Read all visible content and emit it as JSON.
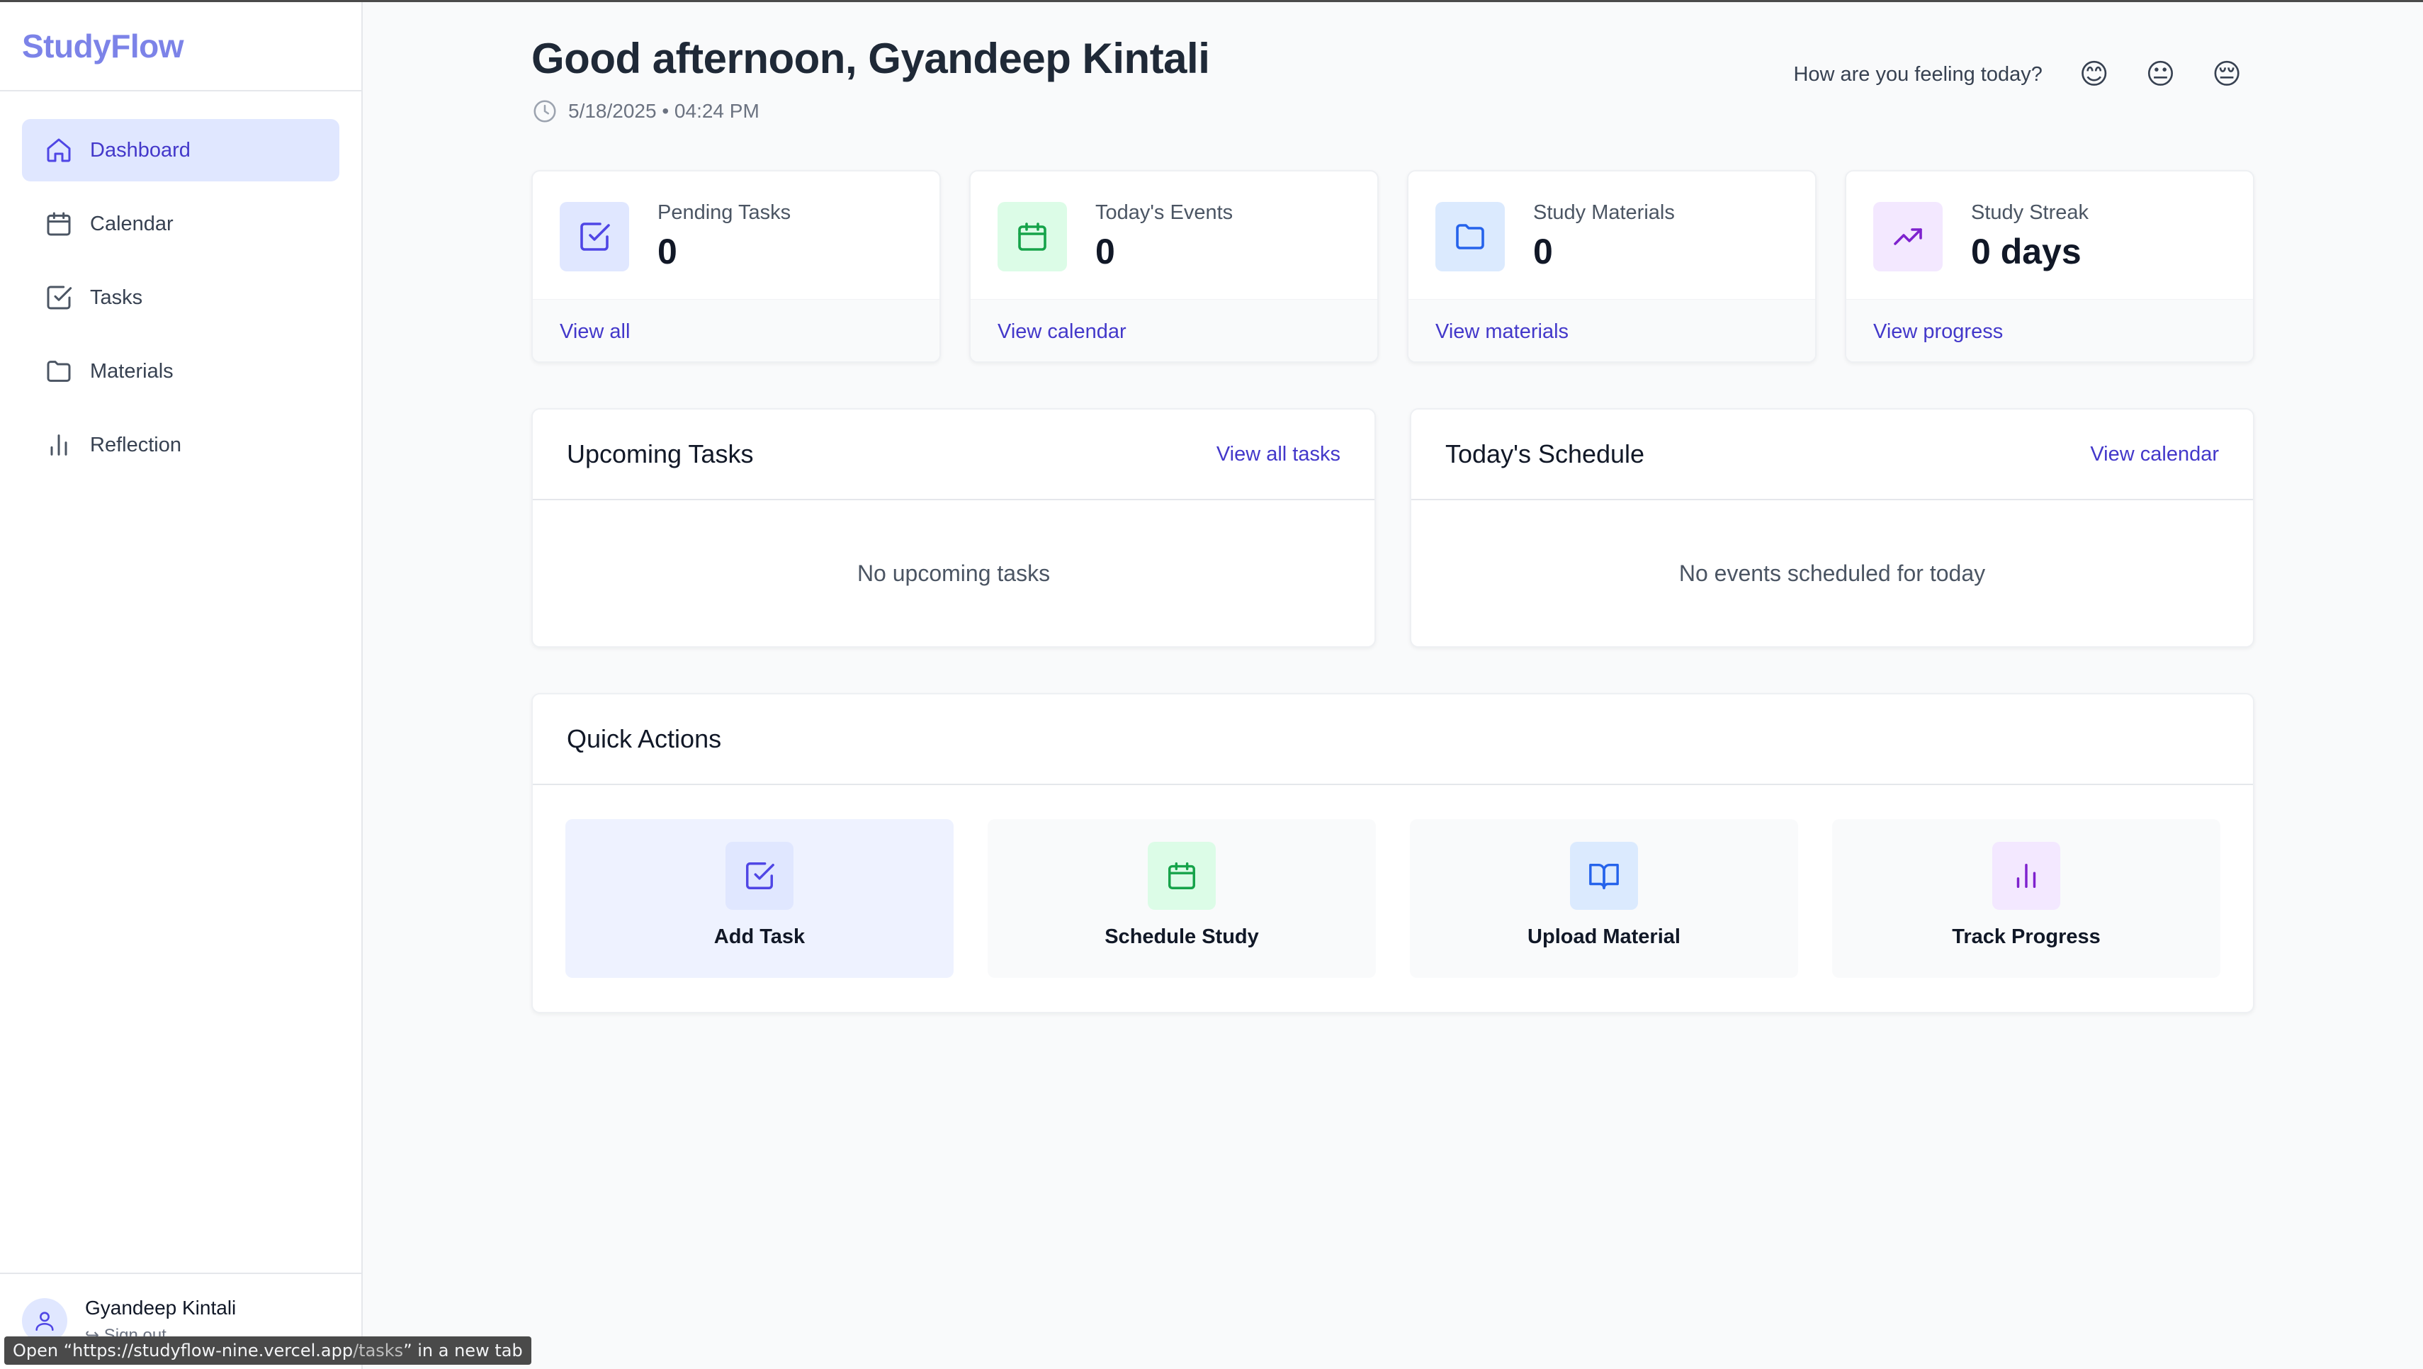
{
  "app": {
    "name": "StudyFlow"
  },
  "sidebar": {
    "items": [
      {
        "label": "Dashboard",
        "icon": "home-icon",
        "active": true
      },
      {
        "label": "Calendar",
        "icon": "calendar-icon",
        "active": false
      },
      {
        "label": "Tasks",
        "icon": "check-square-icon",
        "active": false
      },
      {
        "label": "Materials",
        "icon": "folder-icon",
        "active": false
      },
      {
        "label": "Reflection",
        "icon": "bar-chart-icon",
        "active": false
      }
    ],
    "user": {
      "name": "Gyandeep Kintali",
      "signout": "Sign out"
    }
  },
  "header": {
    "greeting": "Good afternoon, Gyandeep Kintali",
    "datetime": "5/18/2025 • 04:24 PM",
    "mood_prompt": "How are you feeling today?",
    "moods": [
      "😊",
      "😐",
      "😔"
    ]
  },
  "stats": [
    {
      "label": "Pending Tasks",
      "value": "0",
      "link": "View all",
      "icon": "check-square-icon",
      "color": "#4f46e5",
      "bg": "#e0e7ff"
    },
    {
      "label": "Today's Events",
      "value": "0",
      "link": "View calendar",
      "icon": "calendar-icon",
      "color": "#16a34a",
      "bg": "#dcfce7"
    },
    {
      "label": "Study Materials",
      "value": "0",
      "link": "View materials",
      "icon": "folder-icon",
      "color": "#2563eb",
      "bg": "#dbeafe"
    },
    {
      "label": "Study Streak",
      "value": "0 days",
      "link": "View progress",
      "icon": "trending-up-icon",
      "color": "#7e22ce",
      "bg": "#f3e8ff"
    }
  ],
  "upcoming": {
    "title": "Upcoming Tasks",
    "link": "View all tasks",
    "empty": "No upcoming tasks"
  },
  "schedule": {
    "title": "Today's Schedule",
    "link": "View calendar",
    "empty": "No events scheduled for today"
  },
  "quick_actions": {
    "title": "Quick Actions",
    "items": [
      {
        "label": "Add Task",
        "icon": "check-square-icon"
      },
      {
        "label": "Schedule Study",
        "icon": "calendar-icon"
      },
      {
        "label": "Upload Material",
        "icon": "book-open-icon"
      },
      {
        "label": "Track Progress",
        "icon": "bar-chart-icon"
      }
    ]
  },
  "status_bar": {
    "prefix": "Open “https://studyflow-nine.vercel.app",
    "path": "/tasks",
    "suffix": "” in a new tab"
  }
}
